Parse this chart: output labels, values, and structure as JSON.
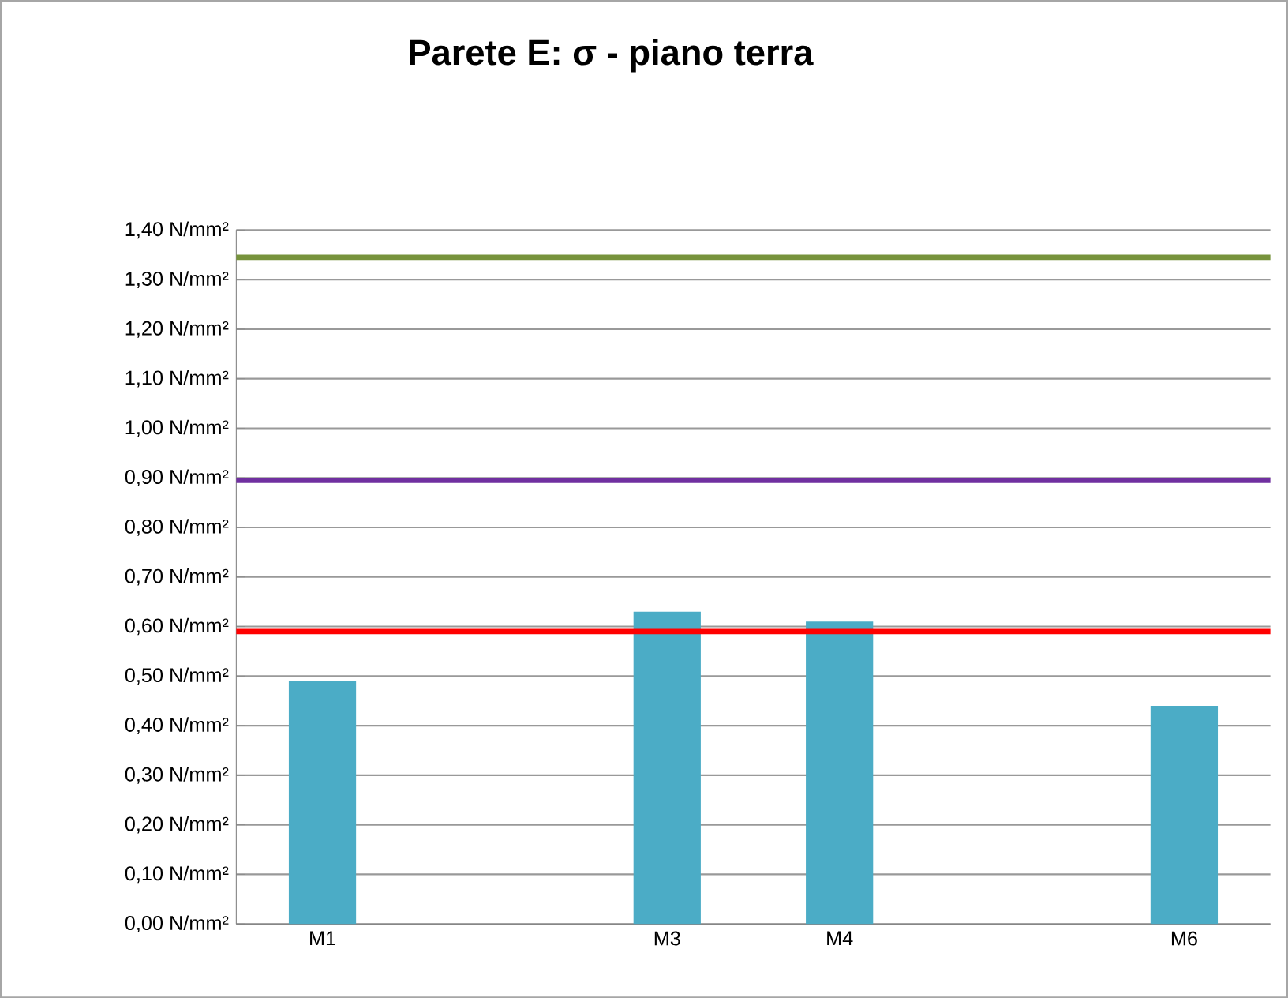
{
  "chart_data": {
    "type": "bar",
    "title": "Parete E: σ - piano terra",
    "categories": [
      "M1",
      null,
      "M3",
      "M4",
      null,
      "M6"
    ],
    "values": [
      0.49,
      null,
      0.63,
      0.61,
      null,
      0.44
    ],
    "color": "#4bacc6",
    "ylim": [
      0,
      1.4
    ],
    "yticks": [
      {
        "value": 0,
        "label": "0,00 N/mm²"
      },
      {
        "value": 0.1,
        "label": "0,10 N/mm²"
      },
      {
        "value": 0.2,
        "label": "0,20 N/mm²"
      },
      {
        "value": 0.3,
        "label": "0,30 N/mm²"
      },
      {
        "value": 0.4,
        "label": "0,40 N/mm²"
      },
      {
        "value": 0.5,
        "label": "0,50 N/mm²"
      },
      {
        "value": 0.6,
        "label": "0,60 N/mm²"
      },
      {
        "value": 0.7,
        "label": "0,70 N/mm²"
      },
      {
        "value": 0.8,
        "label": "0,80 N/mm²"
      },
      {
        "value": 0.9,
        "label": "0,90 N/mm²"
      },
      {
        "value": 1.0,
        "label": "1,00 N/mm²"
      },
      {
        "value": 1.1,
        "label": "1,10 N/mm²"
      },
      {
        "value": 1.2,
        "label": "1,20 N/mm²"
      },
      {
        "value": 1.3,
        "label": "1,30 N/mm²"
      },
      {
        "value": 1.4,
        "label": "1,40 N/mm²"
      }
    ],
    "ref_lines": [
      {
        "axis": "y",
        "value": 1.345,
        "color": "#77933c"
      },
      {
        "axis": "y",
        "value": 0.895,
        "color": "#7030a0"
      },
      {
        "axis": "y",
        "value": 0.59,
        "color": "#ff0000"
      }
    ],
    "grid": "y"
  }
}
